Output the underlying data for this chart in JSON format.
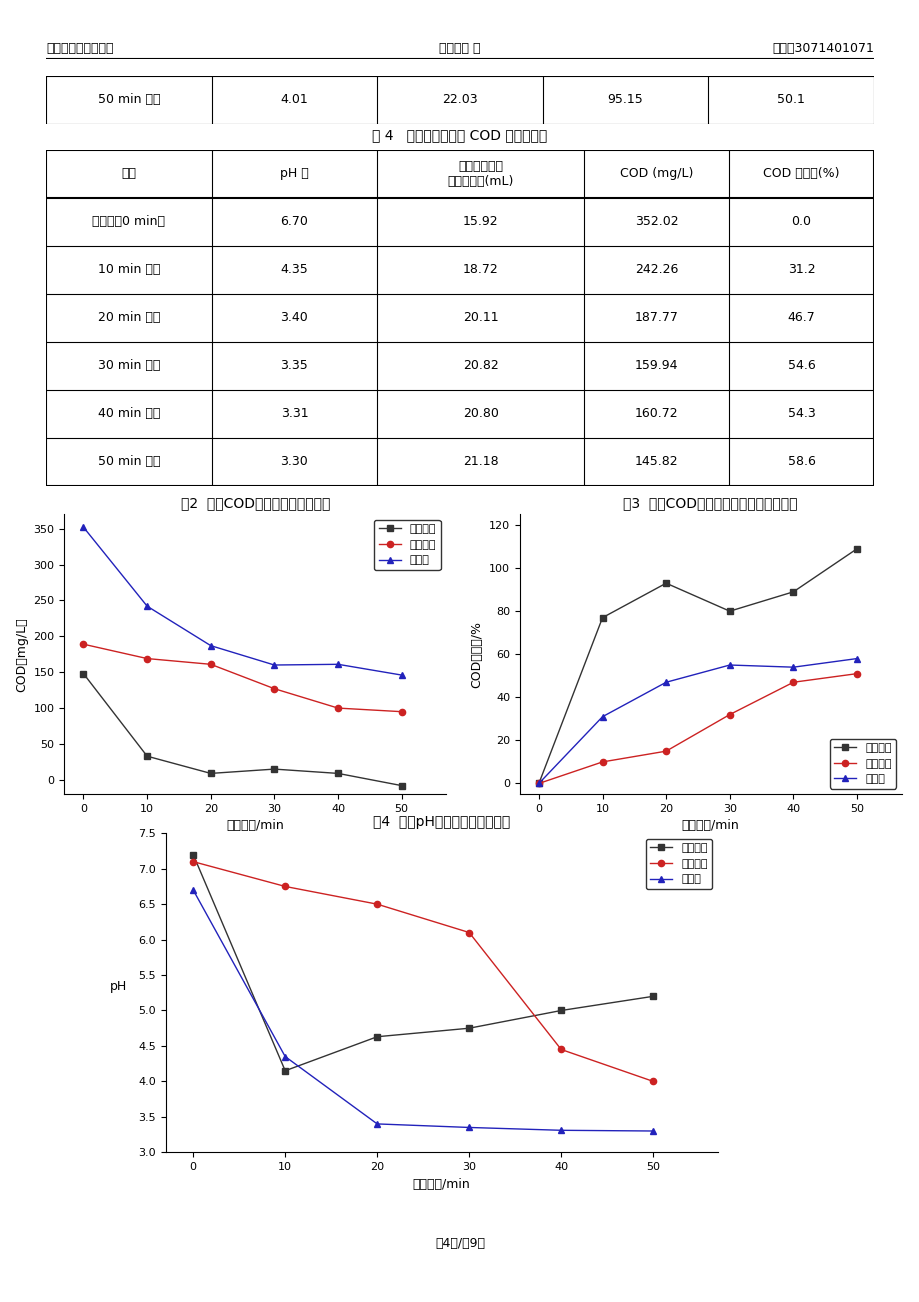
{
  "header_left": "实验名称：混凝实验",
  "header_center": "姓名：王 义",
  "header_right": "学号：3071401071",
  "table3_prev_row": [
    "50 min 水样",
    "4.01",
    "22.03",
    "95.15",
    "50.1"
  ],
  "table3_caption": "表 4   分散蓝染料废水 COD 测定数据表",
  "table3_headers": [
    "水样",
    "pH 值",
    "硫酸亚铁铵的\n滴定消耗量(mL)",
    "COD (mg/L)",
    "COD 去除率(%)"
  ],
  "table3_rows": [
    [
      "原水样（0 min）",
      "6.70",
      "15.92",
      "352.02",
      "0.0"
    ],
    [
      "10 min 水样",
      "4.35",
      "18.72",
      "242.26",
      "31.2"
    ],
    [
      "20 min 水样",
      "3.40",
      "20.11",
      "187.77",
      "46.7"
    ],
    [
      "30 min 水样",
      "3.35",
      "20.82",
      "159.94",
      "54.6"
    ],
    [
      "40 min 水样",
      "3.31",
      "20.80",
      "160.72",
      "54.3"
    ],
    [
      "50 min 水样",
      "3.30",
      "21.18",
      "145.82",
      "58.6"
    ]
  ],
  "time_points": [
    0,
    10,
    20,
    30,
    40,
    50
  ],
  "fig2_title": "图2  废水COD随氧化时间变化曲线",
  "fig2_ylabel": "COD（mg/L）",
  "fig2_xlabel": "氧化时间/min",
  "fig2_ylim": [
    -20,
    370
  ],
  "fig2_yticks": [
    0,
    50,
    100,
    150,
    200,
    250,
    300,
    350
  ],
  "fig2_direct_red": [
    148,
    33,
    9,
    15,
    9,
    -8
  ],
  "fig2_acid_yellow": [
    189,
    169,
    161,
    127,
    100,
    95
  ],
  "fig2_disperse_blue": [
    352,
    242,
    187,
    160,
    161,
    146
  ],
  "fig3_title": "图3  废水COD去除率随氧化时间变化曲线",
  "fig3_ylabel": "COD去除率/%",
  "fig3_xlabel": "氧化时间/min",
  "fig3_ylim": [
    -5,
    125
  ],
  "fig3_yticks": [
    0,
    20,
    40,
    60,
    80,
    100,
    120
  ],
  "fig3_direct_red": [
    0,
    77,
    93,
    80,
    89,
    109
  ],
  "fig3_acid_yellow": [
    0,
    10,
    15,
    32,
    47,
    51
  ],
  "fig3_disperse_blue": [
    0,
    31,
    47,
    55,
    54,
    58
  ],
  "fig4_title": "图4  废水pH随氧化时间变化曲线",
  "fig4_ylabel": "pH",
  "fig4_xlabel": "氧化时间/min",
  "fig4_ylim": [
    3.0,
    7.5
  ],
  "fig4_yticks": [
    3.0,
    3.5,
    4.0,
    4.5,
    5.0,
    5.5,
    6.0,
    6.5,
    7.0,
    7.5
  ],
  "fig4_direct_red": [
    7.2,
    4.15,
    4.63,
    4.75,
    5.0,
    5.2
  ],
  "fig4_acid_yellow": [
    7.1,
    6.75,
    6.5,
    6.1,
    4.45,
    4.0
  ],
  "fig4_disperse_blue": [
    6.7,
    4.35,
    3.4,
    3.35,
    3.31,
    3.3
  ],
  "legend_direct_red": "直接桃红",
  "legend_acid_yellow": "酸性嫩黄",
  "legend_disperse_blue": "分散蓝",
  "color_direct_red": "#333333",
  "color_acid_yellow": "#cc2222",
  "color_disperse_blue": "#2222bb",
  "footer": "第4页/总9页"
}
